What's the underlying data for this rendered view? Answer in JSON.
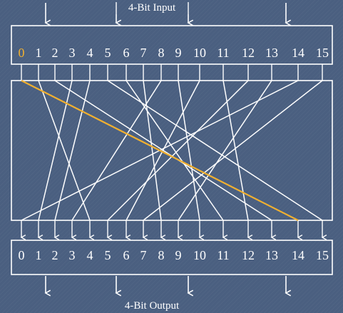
{
  "input_title": "4-Bit Input",
  "output_title": "4-Bit Output",
  "input_labels": [
    "0",
    "1",
    "2",
    "3",
    "4",
    "5",
    "6",
    "7",
    "8",
    "9",
    "10",
    "11",
    "12",
    "13",
    "14",
    "15"
  ],
  "output_labels": [
    "0",
    "1",
    "2",
    "3",
    "4",
    "5",
    "6",
    "7",
    "8",
    "9",
    "10",
    "11",
    "12",
    "13",
    "14",
    "15"
  ],
  "sbox_mapping": [
    14,
    4,
    13,
    1,
    2,
    15,
    11,
    8,
    3,
    10,
    6,
    12,
    5,
    9,
    0,
    7
  ],
  "highlighted_input": 0,
  "colors": {
    "background": "#4a5f80",
    "line": "#ffffff",
    "highlight": "#f0b030"
  }
}
